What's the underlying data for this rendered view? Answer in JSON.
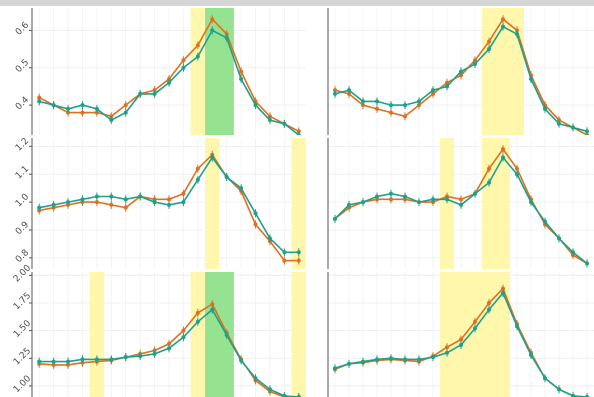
{
  "style": {
    "series_colors": [
      "#e07020",
      "#1fa08a"
    ],
    "highlight_yellow": "#fff7a8",
    "highlight_green": "#8fe28a",
    "grid_color": "#ececec",
    "top_strip_color": "#d6d6d6"
  },
  "chart_data": [
    {
      "type": "line",
      "panel": "top-left",
      "x": [
        1,
        2,
        3,
        4,
        5,
        6,
        7,
        8,
        9,
        10,
        11,
        12,
        13,
        14,
        15,
        16,
        17,
        18,
        19
      ],
      "xlim": [
        0.5,
        19.5
      ],
      "ylim": [
        0.32,
        0.66
      ],
      "yticks": [
        0.4,
        0.5,
        0.6
      ],
      "yticklabels": [
        "0.4",
        "0.5",
        "0.6"
      ],
      "series": [
        {
          "values": [
            0.42,
            0.4,
            0.38,
            0.38,
            0.38,
            0.37,
            0.4,
            0.43,
            0.44,
            0.47,
            0.52,
            0.56,
            0.63,
            0.59,
            0.49,
            0.41,
            0.37,
            0.35,
            0.33
          ]
        },
        {
          "values": [
            0.41,
            0.4,
            0.39,
            0.4,
            0.39,
            0.36,
            0.38,
            0.43,
            0.43,
            0.46,
            0.5,
            0.53,
            0.6,
            0.58,
            0.47,
            0.4,
            0.36,
            0.35,
            0.32
          ]
        }
      ],
      "highlights": [
        {
          "x0": 11.5,
          "x1": 12.5,
          "color": "yellow"
        },
        {
          "x0": 12.5,
          "x1": 14.5,
          "color": "green"
        }
      ]
    },
    {
      "type": "line",
      "panel": "top-right",
      "x": [
        1,
        2,
        3,
        4,
        5,
        6,
        7,
        8,
        9,
        10,
        11,
        12,
        13,
        14,
        15,
        16,
        17,
        18,
        19
      ],
      "xlim": [
        0.5,
        19.5
      ],
      "ylim": [
        0.32,
        0.66
      ],
      "yticks": [
        0.4,
        0.5,
        0.6
      ],
      "yticklabels": [
        "",
        "",
        ""
      ],
      "series": [
        {
          "values": [
            0.44,
            0.43,
            0.4,
            0.39,
            0.38,
            0.37,
            0.4,
            0.43,
            0.46,
            0.48,
            0.52,
            0.57,
            0.63,
            0.6,
            0.48,
            0.4,
            0.36,
            0.34,
            0.32
          ]
        },
        {
          "values": [
            0.43,
            0.44,
            0.41,
            0.41,
            0.4,
            0.4,
            0.41,
            0.44,
            0.45,
            0.49,
            0.51,
            0.55,
            0.61,
            0.59,
            0.47,
            0.39,
            0.35,
            0.34,
            0.33
          ]
        }
      ],
      "highlights": [
        {
          "x0": 11.5,
          "x1": 14.5,
          "color": "yellow"
        }
      ]
    },
    {
      "type": "line",
      "panel": "middle-left",
      "x": [
        1,
        2,
        3,
        4,
        5,
        6,
        7,
        8,
        9,
        10,
        11,
        12,
        13,
        14,
        15,
        16,
        17,
        18,
        19
      ],
      "xlim": [
        0.5,
        19.5
      ],
      "ylim": [
        0.76,
        1.23
      ],
      "yticks": [
        0.8,
        0.9,
        1.0,
        1.1,
        1.2
      ],
      "yticklabels": [
        "0.8",
        "0.9",
        "1.0",
        "1.1",
        "1.2"
      ],
      "series": [
        {
          "values": [
            0.97,
            0.98,
            0.99,
            1.0,
            1.0,
            0.99,
            0.98,
            1.02,
            1.01,
            1.01,
            1.03,
            1.12,
            1.17,
            1.09,
            1.04,
            0.92,
            0.86,
            0.79,
            0.79
          ]
        },
        {
          "values": [
            0.98,
            0.99,
            1.0,
            1.01,
            1.02,
            1.02,
            1.01,
            1.02,
            1.0,
            0.99,
            1.0,
            1.08,
            1.16,
            1.09,
            1.05,
            0.96,
            0.87,
            0.82,
            0.82
          ]
        }
      ],
      "highlights": [
        {
          "x0": 12.5,
          "x1": 13.5,
          "color": "yellow"
        },
        {
          "x0": 18.5,
          "x1": 19.5,
          "color": "yellow"
        }
      ]
    },
    {
      "type": "line",
      "panel": "middle-right",
      "x": [
        1,
        2,
        3,
        4,
        5,
        6,
        7,
        8,
        9,
        10,
        11,
        12,
        13,
        14,
        15,
        16,
        17,
        18,
        19
      ],
      "xlim": [
        0.5,
        19.5
      ],
      "ylim": [
        0.76,
        1.23
      ],
      "yticks": [
        0.8,
        0.9,
        1.0,
        1.1,
        1.2
      ],
      "yticklabels": [
        "",
        "",
        "",
        "",
        ""
      ],
      "series": [
        {
          "values": [
            0.94,
            0.98,
            1.0,
            1.01,
            1.01,
            1.01,
            1.0,
            1.0,
            1.02,
            1.01,
            1.03,
            1.12,
            1.19,
            1.12,
            1.01,
            0.92,
            0.87,
            0.81,
            0.78
          ]
        },
        {
          "values": [
            0.94,
            0.99,
            1.0,
            1.02,
            1.03,
            1.02,
            1.0,
            1.01,
            1.01,
            0.99,
            1.03,
            1.07,
            1.16,
            1.1,
            1.0,
            0.93,
            0.87,
            0.82,
            0.78
          ]
        }
      ],
      "highlights": [
        {
          "x0": 8.5,
          "x1": 9.5,
          "color": "yellow"
        },
        {
          "x0": 11.5,
          "x1": 13.5,
          "color": "yellow"
        }
      ]
    },
    {
      "type": "line",
      "panel": "bottom-left",
      "x": [
        1,
        2,
        3,
        4,
        5,
        6,
        7,
        8,
        9,
        10,
        11,
        12,
        13,
        14,
        15,
        16,
        17,
        18,
        19
      ],
      "xlim": [
        0.5,
        19.5
      ],
      "ylim": [
        0.9,
        2.03
      ],
      "yticks": [
        1.0,
        1.25,
        1.5,
        1.75,
        2.0
      ],
      "yticklabels": [
        "1.00",
        "1.25",
        "1.50",
        "1.75",
        "2.00"
      ],
      "series": [
        {
          "values": [
            1.2,
            1.19,
            1.19,
            1.21,
            1.22,
            1.23,
            1.26,
            1.29,
            1.32,
            1.38,
            1.5,
            1.66,
            1.74,
            1.48,
            1.24,
            1.05,
            0.95,
            0.9,
            0.9
          ]
        },
        {
          "values": [
            1.22,
            1.22,
            1.22,
            1.24,
            1.24,
            1.24,
            1.26,
            1.27,
            1.29,
            1.34,
            1.44,
            1.58,
            1.69,
            1.46,
            1.23,
            1.07,
            0.97,
            0.91,
            0.9
          ]
        }
      ],
      "highlights": [
        {
          "x0": 4.5,
          "x1": 5.5,
          "color": "yellow"
        },
        {
          "x0": 11.5,
          "x1": 12.5,
          "color": "yellow"
        },
        {
          "x0": 12.5,
          "x1": 14.5,
          "color": "green"
        },
        {
          "x0": 18.5,
          "x1": 19.5,
          "color": "yellow"
        }
      ]
    },
    {
      "type": "line",
      "panel": "bottom-right",
      "x": [
        1,
        2,
        3,
        4,
        5,
        6,
        7,
        8,
        9,
        10,
        11,
        12,
        13,
        14,
        15,
        16,
        17,
        18,
        19
      ],
      "xlim": [
        0.5,
        19.5
      ],
      "ylim": [
        0.9,
        2.03
      ],
      "yticks": [
        1.0,
        1.25,
        1.5,
        1.75,
        2.0
      ],
      "yticklabels": [
        "",
        "",
        "",
        "",
        ""
      ],
      "series": [
        {
          "values": [
            1.15,
            1.2,
            1.21,
            1.23,
            1.24,
            1.23,
            1.22,
            1.27,
            1.35,
            1.42,
            1.58,
            1.75,
            1.88,
            1.56,
            1.3,
            1.07,
            0.97,
            0.91,
            0.9
          ]
        },
        {
          "values": [
            1.16,
            1.2,
            1.22,
            1.24,
            1.25,
            1.24,
            1.24,
            1.26,
            1.3,
            1.37,
            1.52,
            1.69,
            1.84,
            1.54,
            1.28,
            1.07,
            0.97,
            0.91,
            0.9
          ]
        }
      ],
      "highlights": [
        {
          "x0": 8.5,
          "x1": 13.5,
          "color": "yellow"
        }
      ]
    }
  ]
}
